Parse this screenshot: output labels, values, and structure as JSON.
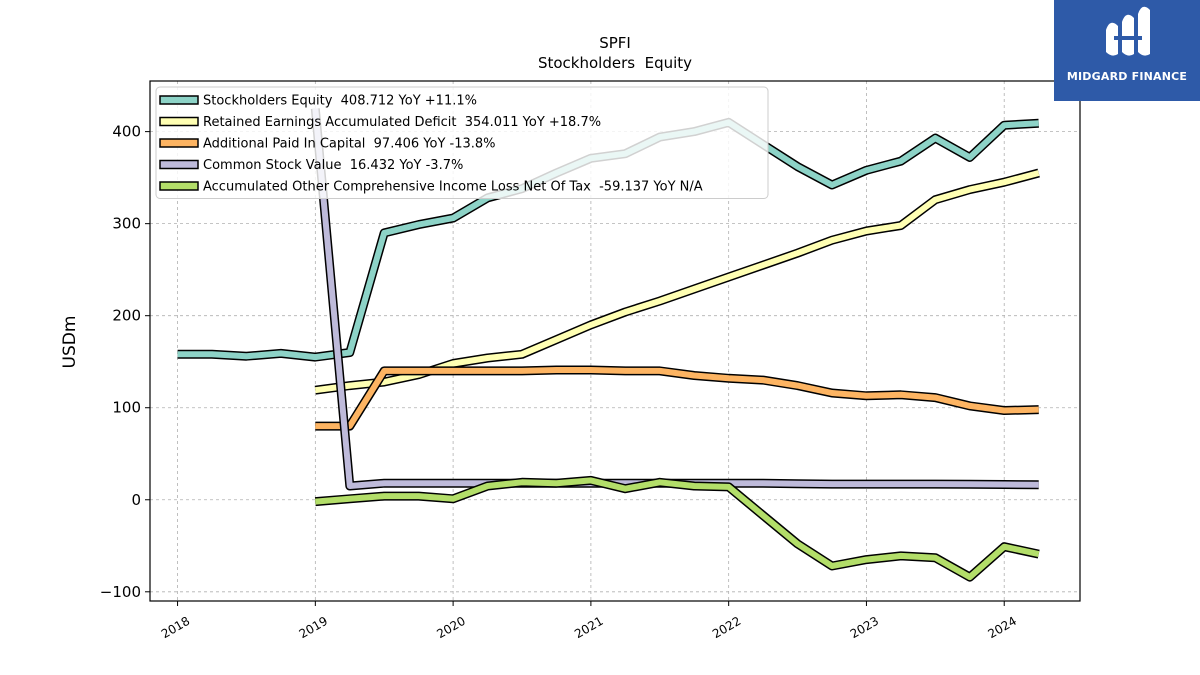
{
  "logo": {
    "text": "MIDGARD FINANCE",
    "color": "#2e5aa8"
  },
  "chart_data": {
    "type": "line",
    "title": "SPFI",
    "subtitle": "Stockholders  Equity",
    "ylabel": "USDm",
    "xlabel": "",
    "xlim": [
      2017.8,
      2024.55
    ],
    "ylim": [
      -110,
      455
    ],
    "x_ticks": [
      2018,
      2019,
      2020,
      2021,
      2022,
      2023,
      2024
    ],
    "y_ticks": [
      -100,
      0,
      100,
      200,
      300,
      400
    ],
    "y_tick_labels": [
      "−100",
      "0",
      "100",
      "200",
      "300",
      "400"
    ],
    "grid": true,
    "legend_position": "top-left",
    "series": [
      {
        "name": "Stockholders Equity  408.712 YoY +11.1%",
        "color": "#8dd3c7",
        "x": [
          2018.0,
          2018.25,
          2018.5,
          2018.75,
          2019.0,
          2019.25,
          2019.5,
          2019.75,
          2020.0,
          2020.25,
          2020.5,
          2020.75,
          2021.0,
          2021.25,
          2021.5,
          2021.75,
          2022.0,
          2022.25,
          2022.5,
          2022.75,
          2023.0,
          2023.25,
          2023.5,
          2023.75,
          2024.0,
          2024.25
        ],
        "y": [
          158,
          158,
          156,
          159,
          155,
          160,
          290,
          299,
          306,
          328,
          338,
          355,
          371,
          376,
          394,
          400,
          410,
          386,
          362,
          342,
          358,
          368,
          393,
          372,
          407,
          409
        ]
      },
      {
        "name": "Retained Earnings Accumulated Deficit  354.011 YoY +18.7%",
        "color": "#ffffb3",
        "x": [
          2019.0,
          2019.25,
          2019.5,
          2019.75,
          2020.0,
          2020.25,
          2020.5,
          2020.75,
          2021.0,
          2021.25,
          2021.5,
          2021.75,
          2022.0,
          2022.25,
          2022.5,
          2022.75,
          2023.0,
          2023.25,
          2023.5,
          2023.75,
          2024.0,
          2024.25
        ],
        "y": [
          119,
          124,
          128,
          136,
          148,
          154,
          158,
          174,
          190,
          204,
          216,
          229,
          242,
          255,
          268,
          282,
          292,
          298,
          326,
          337,
          345,
          355
        ]
      },
      {
        "name": "Additional Paid In Capital  97.406 YoY -13.8%",
        "color": "#fdb462",
        "x": [
          2019.0,
          2019.25,
          2019.5,
          2019.75,
          2020.0,
          2020.25,
          2020.5,
          2020.75,
          2021.0,
          2021.25,
          2021.5,
          2021.75,
          2022.0,
          2022.25,
          2022.5,
          2022.75,
          2023.0,
          2023.25,
          2023.5,
          2023.75,
          2024.0,
          2024.25
        ],
        "y": [
          80,
          80,
          140,
          140,
          140,
          140,
          140,
          141,
          141,
          140,
          140,
          135,
          132,
          130,
          124,
          116,
          113,
          114,
          111,
          102,
          97,
          98
        ]
      },
      {
        "name": "Common Stock Value  16.432 YoY -3.7%",
        "color": "#bebada",
        "x": [
          2019.0,
          2019.25,
          2019.5,
          2019.75,
          2020.0,
          2020.25,
          2020.5,
          2020.75,
          2021.0,
          2021.25,
          2021.5,
          2021.75,
          2022.0,
          2022.25,
          2022.5,
          2022.75,
          2023.0,
          2023.25,
          2023.5,
          2023.75,
          2024.0,
          2024.25
        ],
        "y": [
          425,
          15,
          18,
          18,
          18,
          18,
          18,
          18,
          18,
          18,
          18,
          18,
          18,
          18,
          17.5,
          17,
          17,
          17,
          17,
          16.8,
          16.6,
          16.4
        ]
      },
      {
        "name": "Accumulated Other Comprehensive Income Loss Net Of Tax  -59.137 YoY N/A",
        "color": "#b3de69",
        "x": [
          2019.0,
          2019.25,
          2019.5,
          2019.75,
          2020.0,
          2020.25,
          2020.5,
          2020.75,
          2021.0,
          2021.25,
          2021.5,
          2021.75,
          2022.0,
          2022.25,
          2022.5,
          2022.75,
          2023.0,
          2023.25,
          2023.5,
          2023.75,
          2024.0,
          2024.25
        ],
        "y": [
          -2,
          1,
          4,
          4,
          1,
          15,
          19,
          18,
          21,
          12,
          19,
          15,
          14,
          -17,
          -48,
          -72,
          -65,
          -61,
          -63,
          -84,
          -51,
          -59
        ]
      }
    ]
  }
}
